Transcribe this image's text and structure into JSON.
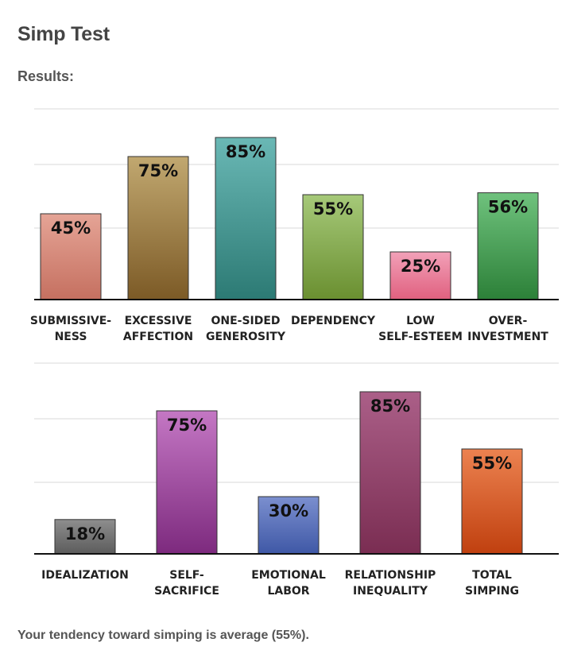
{
  "page": {
    "title": "Simp Test",
    "results_label": "Results:",
    "summary": "Your tendency toward simping is average (55%)."
  },
  "chart_data": [
    {
      "type": "bar",
      "ylim": [
        0,
        100
      ],
      "grid": true,
      "categories": [
        [
          "SUBMISSIVE-",
          "NESS"
        ],
        [
          "EXCESSIVE",
          "AFFECTION"
        ],
        [
          "ONE-SIDED",
          "GENEROSITY"
        ],
        [
          "DEPENDENCY"
        ],
        [
          "LOW",
          "SELF-ESTEEM"
        ],
        [
          "OVER-",
          "INVESTMENT"
        ]
      ],
      "values": [
        45,
        75,
        85,
        55,
        25,
        56
      ],
      "value_labels": [
        "45%",
        "75%",
        "85%",
        "55%",
        "25%",
        "56%"
      ],
      "colors": [
        [
          "#e5a496",
          "#c57060"
        ],
        [
          "#c1a870",
          "#7c5a26"
        ],
        [
          "#6ab8b5",
          "#2c7a74"
        ],
        [
          "#a6c979",
          "#6a8f30"
        ],
        [
          "#f2a1b8",
          "#e0607f"
        ],
        [
          "#6fc27d",
          "#2c8038"
        ]
      ]
    },
    {
      "type": "bar",
      "ylim": [
        0,
        100
      ],
      "grid": true,
      "categories": [
        [
          "IDEALIZATION"
        ],
        [
          "SELF-",
          "SACRIFICE"
        ],
        [
          "EMOTIONAL",
          "LABOR"
        ],
        [
          "RELATIONSHIP",
          "INEQUALITY"
        ],
        [
          "TOTAL",
          "SIMPING"
        ]
      ],
      "values": [
        18,
        75,
        30,
        85,
        55
      ],
      "value_labels": [
        "18%",
        "75%",
        "30%",
        "85%",
        "55%"
      ],
      "colors": [
        [
          "#8e8e8e",
          "#5c5c5c"
        ],
        [
          "#c477c4",
          "#7d2a7e"
        ],
        [
          "#7b8fcf",
          "#3f58a6"
        ],
        [
          "#ab5f88",
          "#7a2d52"
        ],
        [
          "#ec8250",
          "#c0400f"
        ]
      ]
    }
  ]
}
